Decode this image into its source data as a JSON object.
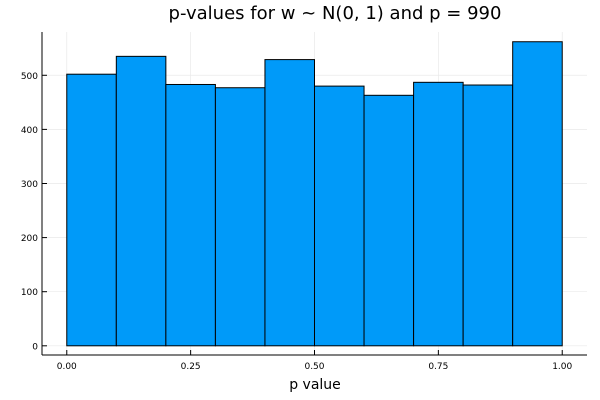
{
  "chart_data": {
    "type": "bar",
    "title": "p-values for w ~ N(0, 1) and p = 990",
    "xlabel": "p value",
    "ylabel": "",
    "bins": [
      {
        "start": 0.0,
        "end": 0.1,
        "count": 502
      },
      {
        "start": 0.1,
        "end": 0.2,
        "count": 535
      },
      {
        "start": 0.2,
        "end": 0.3,
        "count": 483
      },
      {
        "start": 0.3,
        "end": 0.4,
        "count": 477
      },
      {
        "start": 0.4,
        "end": 0.5,
        "count": 529
      },
      {
        "start": 0.5,
        "end": 0.6,
        "count": 480
      },
      {
        "start": 0.6,
        "end": 0.7,
        "count": 463
      },
      {
        "start": 0.7,
        "end": 0.8,
        "count": 487
      },
      {
        "start": 0.8,
        "end": 0.9,
        "count": 482
      },
      {
        "start": 0.9,
        "end": 1.0,
        "count": 562
      }
    ],
    "xlim": [
      -0.05,
      1.05
    ],
    "ylim": [
      -17,
      580
    ],
    "x_ticks": [
      {
        "value": 0.0,
        "label": "0.00"
      },
      {
        "value": 0.25,
        "label": "0.25"
      },
      {
        "value": 0.5,
        "label": "0.50"
      },
      {
        "value": 0.75,
        "label": "0.75"
      },
      {
        "value": 1.0,
        "label": "1.00"
      }
    ],
    "y_ticks": [
      {
        "value": 0,
        "label": "0"
      },
      {
        "value": 100,
        "label": "100"
      },
      {
        "value": 200,
        "label": "200"
      },
      {
        "value": 300,
        "label": "300"
      },
      {
        "value": 400,
        "label": "400"
      },
      {
        "value": 500,
        "label": "500"
      }
    ],
    "grid": true,
    "legend": "none",
    "bar_color": "#009af9",
    "edge_color": "#000000"
  }
}
